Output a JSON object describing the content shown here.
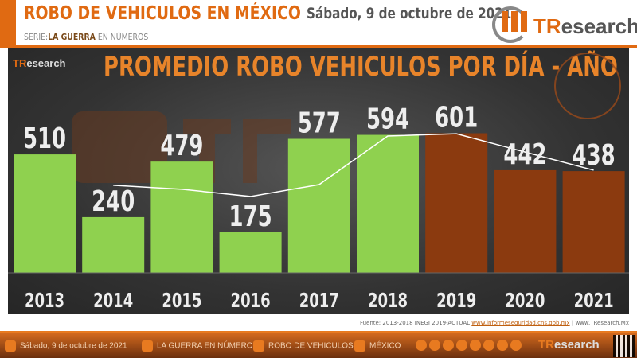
{
  "header": {
    "title": "ROBO DE VEHICULOS  EN MÉXICO",
    "serie_label": "SERIE:",
    "serie_name": "LA GUERRA",
    "serie_rest": "EN NÚMEROS",
    "date": "Sábado, 9 de octubre de 2021",
    "logo_t": "TR",
    "logo_rest": "esearch"
  },
  "chart_data": {
    "type": "bar",
    "title": "PROMEDIO ROBO VEHICULOS POR DÍA - AÑO",
    "categories": [
      "2013",
      "2014",
      "2015",
      "2016",
      "2017",
      "2018",
      "2019",
      "2020",
      "2021"
    ],
    "values": [
      510,
      240,
      479,
      175,
      577,
      594,
      601,
      442,
      438
    ],
    "bar_colors": [
      "#8fd14f",
      "#8fd14f",
      "#8fd14f",
      "#8fd14f",
      "#8fd14f",
      "#8fd14f",
      "#8b3a0f",
      "#8b3a0f",
      "#8b3a0f"
    ],
    "line": {
      "x": [
        "2014",
        "2015",
        "2016",
        "2017",
        "2018",
        "2019",
        "2020",
        "2021"
      ],
      "values": [
        377,
        360,
        329,
        380,
        589,
        599,
        520,
        442
      ],
      "color": "#ffffff"
    },
    "ylim": [
      0,
      700
    ],
    "grid": false,
    "legend": "none"
  },
  "source": {
    "text": "Fuente: 2013-2018 INEGI 2019-ACTUAL",
    "link": "www.informeseguridad.cns.gob.mx",
    "sep": " | ",
    "site": "www.TResearch.Mx"
  },
  "footer": {
    "date": "Sábado, 9 de octubre de 2021",
    "series": "LA GUERRA EN NÚMEROS",
    "topic": "ROBO DE VEHICULOS",
    "place": "MÉXICO",
    "logo_t": "TR",
    "logo_rest": "esearch"
  },
  "colors": {
    "accent": "#e06a12",
    "positive_bar": "#8fd14f",
    "recent_bar": "#8b3a0f"
  }
}
